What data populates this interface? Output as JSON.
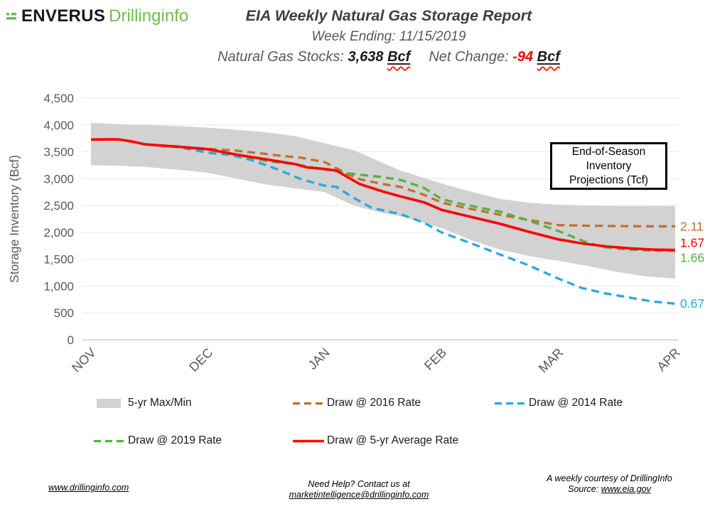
{
  "header": {
    "logo_enverus": "ENVERUS",
    "logo_drillinginfo": "Drillinginfo",
    "title": "EIA Weekly Natural Gas Storage Report",
    "week_ending": "Week Ending: 11/15/2019",
    "stocks_label": "Natural Gas Stocks: ",
    "stocks_value": "3,638 ",
    "stocks_unit": "Bcf",
    "net_change_label": "Net Change: ",
    "net_change_value": "-94 ",
    "net_change_unit": "Bcf"
  },
  "chart_data": {
    "type": "line",
    "title": "EIA Weekly Natural Gas Storage Report",
    "xlabel": "",
    "ylabel": "Storage Inventory (Bcf)",
    "ylim": [
      0,
      4500
    ],
    "grid": true,
    "legend_position": "bottom",
    "ytick_values": [
      4500,
      4000,
      3500,
      3000,
      2500,
      2000,
      1500,
      1000,
      500,
      0
    ],
    "ytick_labels": [
      "4,500",
      "4,000",
      "3,500",
      "3,000",
      "2,500",
      "2,000",
      "1,500",
      "1,000",
      "500",
      "0"
    ],
    "xticks": [
      "NOV",
      "DEC",
      "JAN",
      "FEB",
      "MAR",
      "APR"
    ],
    "x_note": "x is fraction of Nov-Apr span",
    "annotation_box": [
      "End-of-Season",
      "Inventory",
      "Projections (Tcf)"
    ],
    "band": {
      "name": "5-yr Max/Min",
      "color": "#D2D2D2",
      "points": [
        [
          0.0,
          3250,
          4040
        ],
        [
          0.05,
          3240,
          4015
        ],
        [
          0.093,
          3220,
          4000
        ],
        [
          0.15,
          3165,
          3980
        ],
        [
          0.2,
          3110,
          3950
        ],
        [
          0.25,
          3000,
          3910
        ],
        [
          0.3,
          2890,
          3865
        ],
        [
          0.35,
          2820,
          3790
        ],
        [
          0.4,
          2750,
          3660
        ],
        [
          0.45,
          2500,
          3530
        ],
        [
          0.5,
          2360,
          3290
        ],
        [
          0.53,
          2300,
          3150
        ],
        [
          0.6,
          2080,
          2910
        ],
        [
          0.65,
          1860,
          2760
        ],
        [
          0.7,
          1680,
          2625
        ],
        [
          0.75,
          1560,
          2550
        ],
        [
          0.8,
          1470,
          2515
        ],
        [
          0.85,
          1375,
          2498
        ],
        [
          0.9,
          1265,
          2492
        ],
        [
          0.95,
          1180,
          2490
        ],
        [
          1.0,
          1140,
          2492
        ]
      ]
    },
    "series": [
      {
        "name": "Draw @ 2014 Rate",
        "color": "#29A8DF",
        "style": "dashed",
        "end_label": "0.67",
        "points": [
          [
            0.093,
            3638
          ],
          [
            0.15,
            3585
          ],
          [
            0.2,
            3482
          ],
          [
            0.24,
            3440
          ],
          [
            0.28,
            3330
          ],
          [
            0.32,
            3170
          ],
          [
            0.36,
            2990
          ],
          [
            0.4,
            2870
          ],
          [
            0.42,
            2848
          ],
          [
            0.45,
            2640
          ],
          [
            0.48,
            2460
          ],
          [
            0.5,
            2410
          ],
          [
            0.53,
            2340
          ],
          [
            0.57,
            2180
          ],
          [
            0.6,
            2000
          ],
          [
            0.65,
            1800
          ],
          [
            0.7,
            1590
          ],
          [
            0.75,
            1385
          ],
          [
            0.8,
            1140
          ],
          [
            0.84,
            965
          ],
          [
            0.88,
            865
          ],
          [
            0.92,
            790
          ],
          [
            0.96,
            715
          ],
          [
            1.0,
            672
          ]
        ]
      },
      {
        "name": "Draw @ 2016 Rate",
        "color": "#C0702B",
        "style": "dashed",
        "end_label": "2.11",
        "points": [
          [
            0.093,
            3638
          ],
          [
            0.15,
            3598
          ],
          [
            0.2,
            3556
          ],
          [
            0.25,
            3520
          ],
          [
            0.3,
            3460
          ],
          [
            0.33,
            3420
          ],
          [
            0.36,
            3390
          ],
          [
            0.4,
            3310
          ],
          [
            0.44,
            3080
          ],
          [
            0.46,
            2990
          ],
          [
            0.5,
            2900
          ],
          [
            0.53,
            2845
          ],
          [
            0.57,
            2700
          ],
          [
            0.6,
            2556
          ],
          [
            0.65,
            2436
          ],
          [
            0.7,
            2330
          ],
          [
            0.75,
            2230
          ],
          [
            0.8,
            2136
          ],
          [
            0.85,
            2124
          ],
          [
            0.9,
            2118
          ],
          [
            0.95,
            2114
          ],
          [
            1.0,
            2112
          ]
        ]
      },
      {
        "name": "Draw @ 2019 Rate",
        "color": "#56B13C",
        "style": "dashed",
        "end_label": "1.66",
        "points": [
          [
            0.093,
            3638
          ],
          [
            0.15,
            3592
          ],
          [
            0.2,
            3540
          ],
          [
            0.25,
            3445
          ],
          [
            0.3,
            3330
          ],
          [
            0.35,
            3265
          ],
          [
            0.4,
            3170
          ],
          [
            0.45,
            3086
          ],
          [
            0.49,
            3040
          ],
          [
            0.53,
            2976
          ],
          [
            0.57,
            2830
          ],
          [
            0.6,
            2620
          ],
          [
            0.63,
            2540
          ],
          [
            0.67,
            2450
          ],
          [
            0.7,
            2386
          ],
          [
            0.75,
            2216
          ],
          [
            0.8,
            2026
          ],
          [
            0.85,
            1806
          ],
          [
            0.88,
            1722
          ],
          [
            0.92,
            1680
          ],
          [
            0.96,
            1662
          ],
          [
            1.0,
            1658
          ]
        ]
      },
      {
        "name": "Draw @ 5-yr Average Rate",
        "color": "#FF0000",
        "style": "solid",
        "end_label": "1.67",
        "points": [
          [
            0.0,
            3729
          ],
          [
            0.025,
            3731
          ],
          [
            0.046,
            3732
          ],
          [
            0.07,
            3692
          ],
          [
            0.093,
            3638
          ],
          [
            0.15,
            3595
          ],
          [
            0.2,
            3548
          ],
          [
            0.25,
            3445
          ],
          [
            0.3,
            3360
          ],
          [
            0.35,
            3270
          ],
          [
            0.37,
            3210
          ],
          [
            0.4,
            3180
          ],
          [
            0.42,
            3150
          ],
          [
            0.46,
            2900
          ],
          [
            0.5,
            2760
          ],
          [
            0.53,
            2670
          ],
          [
            0.57,
            2560
          ],
          [
            0.6,
            2420
          ],
          [
            0.65,
            2290
          ],
          [
            0.7,
            2160
          ],
          [
            0.75,
            2010
          ],
          [
            0.8,
            1870
          ],
          [
            0.84,
            1795
          ],
          [
            0.88,
            1740
          ],
          [
            0.92,
            1705
          ],
          [
            0.96,
            1680
          ],
          [
            1.0,
            1672
          ]
        ]
      }
    ],
    "legend": [
      [
        {
          "label": "5-yr Max/Min",
          "swatch": "band",
          "color": "#D2D2D2"
        },
        {
          "label": "Draw @ 2016 Rate",
          "swatch": "dash",
          "color": "#C0702B"
        },
        {
          "label": "Draw @ 2014 Rate",
          "swatch": "dash",
          "color": "#29A8DF"
        }
      ],
      [
        {
          "label": "Draw @ 2019 Rate",
          "swatch": "dash",
          "color": "#56B13C"
        },
        {
          "label": "Draw @ 5-yr Average Rate",
          "swatch": "solid",
          "color": "#FF0000"
        }
      ]
    ]
  },
  "footer": {
    "left_link": "www.drillinginfo.com",
    "center_line1": "Need Help? Contact us at",
    "center_line2": "marketintelligence@drillinginfo.com",
    "right_line1": "A weekly courtesy of DrillingInfo",
    "right_source_label": "Source: ",
    "right_source_link": "www.eia.gov"
  }
}
